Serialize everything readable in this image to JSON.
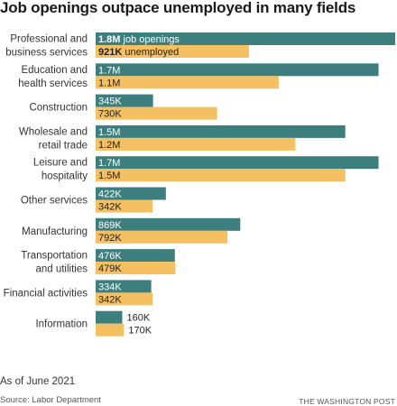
{
  "chart_data": {
    "type": "bar",
    "orientation": "horizontal",
    "title": "Job openings outpace unemployed in many fields",
    "categories": [
      [
        "Professional and",
        "business services"
      ],
      [
        "Education and",
        "health services"
      ],
      [
        "Construction"
      ],
      [
        "Wholesale and",
        "retail trade"
      ],
      [
        "Leisure and",
        "hospitality"
      ],
      [
        "Other services"
      ],
      [
        "Manufacturing"
      ],
      [
        "Transportation",
        "and utilities"
      ],
      [
        "Financial activities"
      ],
      [
        "Information"
      ]
    ],
    "series": [
      {
        "name": "job openings",
        "color": "#3d7f7f",
        "values": [
          1.8,
          1.7,
          0.345,
          1.5,
          1.7,
          0.422,
          0.869,
          0.476,
          0.334,
          0.16
        ],
        "labels": [
          "1.8M",
          "1.7M",
          "345K",
          "1.5M",
          "1.7M",
          "422K",
          "869K",
          "476K",
          "334K",
          "160K"
        ]
      },
      {
        "name": "unemployed",
        "color": "#f4c062",
        "values": [
          0.921,
          1.1,
          0.73,
          1.2,
          1.5,
          0.342,
          0.792,
          0.479,
          0.342,
          0.17
        ],
        "labels": [
          "921K",
          "1.1M",
          "730K",
          "1.2M",
          "1.5M",
          "342K",
          "792K",
          "479K",
          "342K",
          "170K"
        ]
      }
    ],
    "value_unit": "millions",
    "xlim": [
      0,
      1.8
    ],
    "grid": false,
    "legend": "inline on first bars"
  },
  "note": "As of June 2021",
  "source": "Source: Labor Department",
  "credit": "THE WASHINGTON POST"
}
